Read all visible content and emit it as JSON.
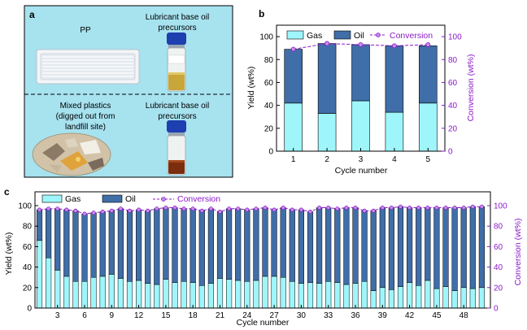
{
  "colors": {
    "gas": "#9ef6fb",
    "oil": "#3f6ea8",
    "conversion": "#8a19c9",
    "panel_a_bg": "#a7e2ef"
  },
  "panel_a": {
    "label": "a",
    "top_left": "PP",
    "top_right_line1": "Lubricant base oil",
    "top_right_line2": "precursors",
    "bottom_left_line1": "Mixed plastics",
    "bottom_left_line2": "(digged out from",
    "bottom_left_line3": "landfill site)",
    "bottom_right_line1": "Lubricant base oil",
    "bottom_right_line2": "precursors"
  },
  "chart_data": [
    {
      "panel": "b",
      "type": "bar",
      "stacked": true,
      "x": [
        1,
        2,
        3,
        4,
        5
      ],
      "series": [
        {
          "name": "Gas",
          "values": [
            42,
            33,
            44,
            34,
            42
          ]
        },
        {
          "name": "Oil",
          "values": [
            47,
            61,
            49,
            58,
            50
          ]
        },
        {
          "name": "Conversion",
          "type": "line",
          "axis": "right",
          "values": [
            89,
            94,
            93,
            92,
            93
          ]
        }
      ],
      "xlabel": "Cycle number",
      "ylabel": "Yield (wt%)",
      "y2label": "Conversion (wt%)",
      "ylim": [
        0,
        110
      ],
      "y2lim": [
        0,
        110
      ],
      "yticks": [
        0,
        20,
        40,
        60,
        80,
        100
      ],
      "legend": [
        "Gas",
        "Oil",
        "Conversion"
      ],
      "legend_position": "top"
    },
    {
      "panel": "c",
      "type": "bar",
      "stacked": true,
      "x": [
        1,
        2,
        3,
        4,
        5,
        6,
        7,
        8,
        9,
        10,
        11,
        12,
        13,
        14,
        15,
        16,
        17,
        18,
        19,
        20,
        21,
        22,
        23,
        24,
        25,
        26,
        27,
        28,
        29,
        30,
        31,
        32,
        33,
        34,
        35,
        36,
        37,
        38,
        39,
        40,
        41,
        42,
        43,
        44,
        45,
        46,
        47,
        48,
        49,
        50
      ],
      "series": [
        {
          "name": "Gas",
          "values": [
            66,
            49,
            37,
            31,
            26,
            26,
            30,
            31,
            33,
            29,
            26,
            27,
            24,
            23,
            28,
            25,
            26,
            25,
            22,
            24,
            29,
            28,
            27,
            26,
            27,
            31,
            31,
            30,
            26,
            24,
            25,
            24,
            26,
            25,
            23,
            24,
            26,
            17,
            20,
            18,
            21,
            25,
            22,
            27,
            19,
            21,
            17,
            20,
            19,
            20
          ]
        },
        {
          "name": "Oil",
          "values": [
            30,
            48,
            60,
            65,
            69,
            66,
            63,
            63,
            62,
            68,
            69,
            69,
            71,
            74,
            70,
            73,
            71,
            72,
            73,
            73,
            65,
            69,
            70,
            70,
            70,
            67,
            65,
            68,
            70,
            72,
            69,
            74,
            72,
            72,
            75,
            74,
            69,
            78,
            78,
            80,
            78,
            73,
            76,
            71,
            79,
            77,
            81,
            78,
            80,
            79
          ]
        },
        {
          "name": "Conversion",
          "type": "line",
          "axis": "right",
          "values": [
            96,
            97,
            97,
            96,
            95,
            92,
            93,
            94,
            95,
            97,
            95,
            96,
            95,
            97,
            98,
            98,
            97,
            97,
            95,
            97,
            94,
            97,
            97,
            96,
            97,
            98,
            96,
            98,
            96,
            96,
            94,
            98,
            98,
            97,
            98,
            98,
            95,
            95,
            98,
            98,
            99,
            98,
            98,
            98,
            98,
            98,
            98,
            98,
            99,
            99
          ]
        }
      ],
      "xlabel": "Cycle number",
      "ylabel": "Yield (wt%)",
      "y2label": "Conversion (wt%)",
      "ylim": [
        0,
        100
      ],
      "y2lim": [
        0,
        100
      ],
      "yticks": [
        0,
        20,
        40,
        60,
        80,
        100
      ],
      "xticks": [
        3,
        6,
        9,
        12,
        15,
        18,
        21,
        24,
        27,
        30,
        33,
        36,
        39,
        42,
        45,
        48
      ],
      "legend": [
        "Gas",
        "Oil",
        "Conversion"
      ],
      "legend_position": "top"
    }
  ]
}
